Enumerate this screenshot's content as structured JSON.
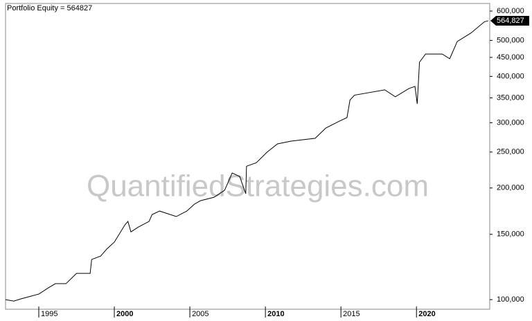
{
  "chart_data": {
    "type": "line",
    "title": "Portfolio Equity = 564827",
    "watermark": "QuantifiedStrategies.com",
    "last_label": "564,827",
    "log_scale": true,
    "color": "#000000",
    "x": [
      1992.8,
      1993.35,
      1993.8,
      1994.5,
      1995.0,
      1995.7,
      1996.1,
      1996.8,
      1997.5,
      1998.4,
      1998.5,
      1999.1,
      1999.5,
      2000.0,
      2000.7,
      2000.9,
      2001.1,
      2001.6,
      2002.3,
      2002.5,
      2003.0,
      2004.1,
      2004.8,
      2005.3,
      2005.7,
      2006.6,
      2007.3,
      2007.8,
      2008.3,
      2008.7,
      2008.75,
      2009.4,
      2010.1,
      2010.8,
      2011.7,
      2013.3,
      2014.0,
      2014.9,
      2015.4,
      2015.6,
      2015.9,
      2017.9,
      2018.6,
      2019.5,
      2019.9,
      2020.05,
      2020.2,
      2020.6,
      2021.7,
      2022.2,
      2022.7,
      2023.6,
      2024.5,
      2024.75
    ],
    "values": [
      100000,
      99100,
      100400,
      102200,
      103500,
      108000,
      110400,
      110400,
      117700,
      117700,
      128300,
      131100,
      136900,
      142900,
      159000,
      162500,
      152300,
      157000,
      162500,
      169600,
      173300,
      167500,
      173300,
      180900,
      184800,
      188800,
      197200,
      219500,
      214800,
      193000,
      228900,
      234000,
      249600,
      263000,
      267600,
      272300,
      290300,
      303000,
      309600,
      345400,
      355900,
      367900,
      352400,
      371000,
      375800,
      337300,
      436800,
      459500,
      459500,
      446300,
      496800,
      523300,
      561500,
      564827
    ],
    "xlim": [
      1992.8,
      2024.85
    ],
    "xticks": [
      1995,
      2000,
      2005,
      2010,
      2015,
      2020
    ],
    "ylim": [
      94200,
      629000
    ],
    "yticks": [
      {
        "value": 100000,
        "label": "100,000"
      },
      {
        "value": 150000,
        "label": "150,000"
      },
      {
        "value": 200000,
        "label": "200,000"
      },
      {
        "value": 250000,
        "label": "250,000"
      },
      {
        "value": 300000,
        "label": "300,000"
      },
      {
        "value": 350000,
        "label": "350,000"
      },
      {
        "value": 400000,
        "label": "400,000"
      },
      {
        "value": 450000,
        "label": "450,000"
      },
      {
        "value": 500000,
        "label": "500,000"
      },
      {
        "value": 600000,
        "label": "600,000"
      }
    ]
  }
}
